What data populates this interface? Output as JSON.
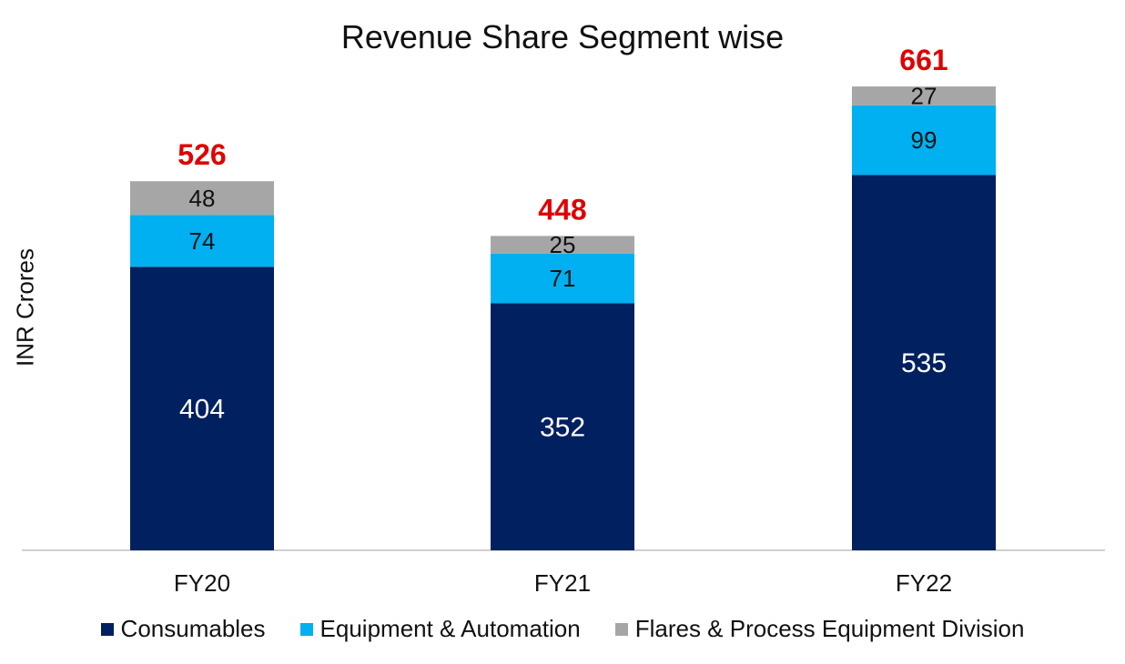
{
  "chart_data": {
    "type": "bar",
    "stacked": true,
    "title": "Revenue Share Segment wise",
    "ylabel": "INR Crores",
    "xlabel": "",
    "categories": [
      "FY20",
      "FY21",
      "FY22"
    ],
    "series": [
      {
        "name": "Consumables",
        "values": [
          404,
          352,
          535
        ],
        "color": "#002060"
      },
      {
        "name": "Equipment & Automation",
        "values": [
          74,
          71,
          99
        ],
        "color": "#00B0F0"
      },
      {
        "name": "Flares & Process Equipment Division",
        "values": [
          48,
          25,
          27
        ],
        "color": "#A6A6A6"
      }
    ],
    "totals": [
      526,
      448,
      661
    ],
    "total_label_color": "#E00000",
    "ylim": [
      0,
      700
    ],
    "grid": false,
    "legend": "bottom"
  }
}
